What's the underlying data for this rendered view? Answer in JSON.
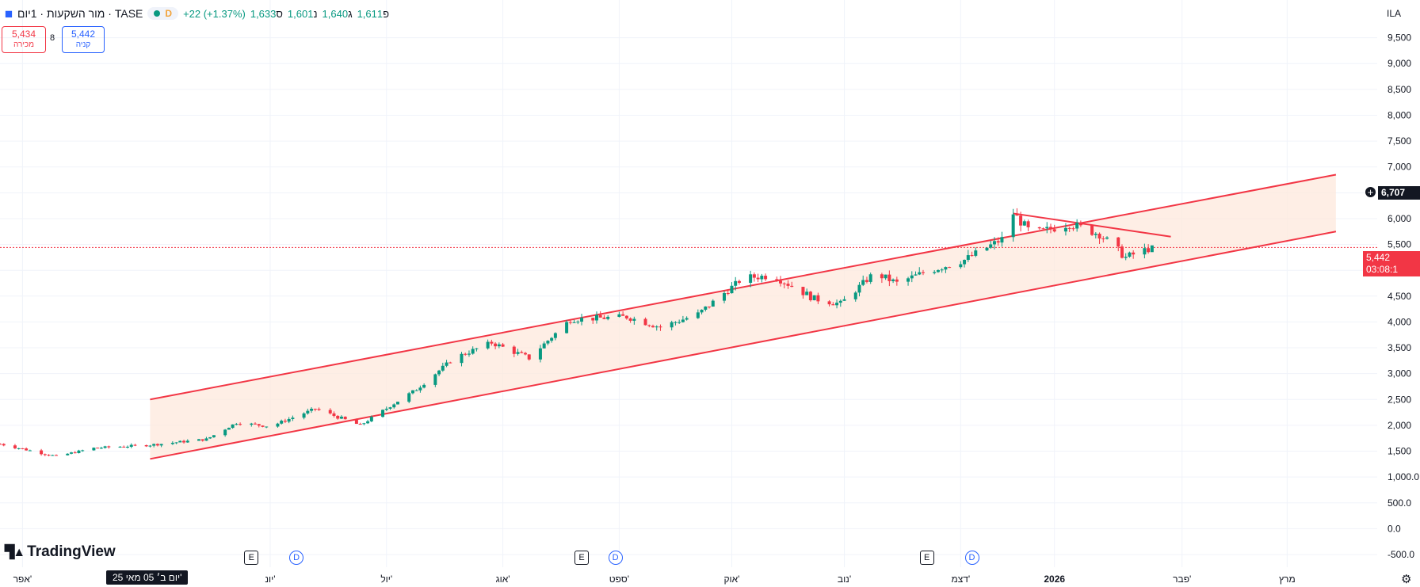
{
  "header": {
    "title": "מור השקעות · 1יום · TASE",
    "interval_badge": "D",
    "change": "+22 (+1.37%)",
    "ohlc": {
      "o_label": "פ",
      "o": "1,611",
      "h_label": "ג",
      "h": "1,640",
      "l_label": "נ",
      "l": "1,601",
      "c_label": "ס",
      "c": "1,633"
    }
  },
  "trade": {
    "sell_price": "5,434",
    "sell_label": "מכירה",
    "spread": "8",
    "buy_price": "5,442",
    "buy_label": "קניה"
  },
  "currency": "ILA",
  "crosshair_price": "6,707",
  "last_price": "5,442",
  "countdown": "03:08:1",
  "crosshair_date": "יום ב׳ 05 מאי 25'",
  "logo_text": "TradingView",
  "colors": {
    "up": "#089981",
    "down": "#f23645",
    "channel": "#f23645",
    "channel_fill": "#fde8dc"
  },
  "events": [
    {
      "type": "E",
      "date": "2025-06-01"
    },
    {
      "type": "D",
      "date": "2025-06-13"
    },
    {
      "type": "E",
      "date": "2025-08-28"
    },
    {
      "type": "D",
      "date": "2025-09-06"
    },
    {
      "type": "E",
      "date": "2025-11-28"
    },
    {
      "type": "D",
      "date": "2025-12-10"
    }
  ],
  "chart_data": {
    "type": "candlestick",
    "x_range": [
      "2025-03-26",
      "2026-03-28"
    ],
    "y_range": [
      -500,
      10000
    ],
    "y_ticks": [
      "9,500",
      "9,000",
      "8,500",
      "8,000",
      "7,500",
      "7,000",
      "6,500",
      "6,000",
      "5,500",
      "5,000",
      "4,500",
      "4,000",
      "3,500",
      "3,000",
      "2,500",
      "2,000",
      "1,500",
      "1,000.0",
      "500.0",
      "0.0",
      "-500.0"
    ],
    "y_tick_values": [
      9500,
      9000,
      8500,
      8000,
      7500,
      7000,
      6500,
      6000,
      5500,
      5000,
      4500,
      4000,
      3500,
      3000,
      2500,
      2000,
      1500,
      1000,
      500,
      0,
      -500
    ],
    "x_ticks": [
      {
        "label": "אפר'",
        "date": "2025-04-01"
      },
      {
        "label": "יונ'",
        "date": "2025-06-06"
      },
      {
        "label": "יול'",
        "date": "2025-07-07"
      },
      {
        "label": "אוג'",
        "date": "2025-08-07"
      },
      {
        "label": "ספט'",
        "date": "2025-09-07"
      },
      {
        "label": "אוק'",
        "date": "2025-10-07"
      },
      {
        "label": "נוב'",
        "date": "2025-11-06"
      },
      {
        "label": "דצמ'",
        "date": "2025-12-07"
      },
      {
        "label": "2026",
        "date": "2026-01-01"
      },
      {
        "label": "פבר'",
        "date": "2026-02-04"
      },
      {
        "label": "מרץ",
        "date": "2026-03-04"
      }
    ],
    "anchors": [
      {
        "date": "2025-03-26",
        "close": 1640
      },
      {
        "date": "2025-04-10",
        "close": 1400
      },
      {
        "date": "2025-04-20",
        "close": 1560
      },
      {
        "date": "2025-05-05",
        "close": 1620
      },
      {
        "date": "2025-05-20",
        "close": 1730
      },
      {
        "date": "2025-05-28",
        "close": 2050
      },
      {
        "date": "2025-06-06",
        "close": 1980
      },
      {
        "date": "2025-06-18",
        "close": 2320
      },
      {
        "date": "2025-06-30",
        "close": 2000
      },
      {
        "date": "2025-07-15",
        "close": 2700
      },
      {
        "date": "2025-07-25",
        "close": 3300
      },
      {
        "date": "2025-08-04",
        "close": 3600
      },
      {
        "date": "2025-08-14",
        "close": 3300
      },
      {
        "date": "2025-08-25",
        "close": 4050
      },
      {
        "date": "2025-09-09",
        "close": 4100
      },
      {
        "date": "2025-09-18",
        "close": 3900
      },
      {
        "date": "2025-09-28",
        "close": 4150
      },
      {
        "date": "2025-10-10",
        "close": 4850
      },
      {
        "date": "2025-10-18",
        "close": 4900
      },
      {
        "date": "2025-10-29",
        "close": 4450
      },
      {
        "date": "2025-11-05",
        "close": 4350
      },
      {
        "date": "2025-11-14",
        "close": 4950
      },
      {
        "date": "2025-11-20",
        "close": 4750
      },
      {
        "date": "2025-11-27",
        "close": 4950
      },
      {
        "date": "2025-12-08",
        "close": 5200
      },
      {
        "date": "2025-12-18",
        "close": 5600
      },
      {
        "date": "2025-12-21",
        "close": 6100
      },
      {
        "date": "2025-12-26",
        "close": 5700
      },
      {
        "date": "2026-01-05",
        "close": 5900
      },
      {
        "date": "2026-01-13",
        "close": 5700
      },
      {
        "date": "2026-01-20",
        "close": 5250
      },
      {
        "date": "2026-01-27",
        "close": 5442
      }
    ],
    "channel": {
      "upper": [
        {
          "date": "2025-05-05",
          "value": 2500
        },
        {
          "date": "2026-03-17",
          "value": 6850
        }
      ],
      "lower": [
        {
          "date": "2025-05-05",
          "value": 1350
        },
        {
          "date": "2026-03-17",
          "value": 5750
        }
      ]
    },
    "trendline": [
      {
        "date": "2025-12-21",
        "value": 6100
      },
      {
        "date": "2026-02-01",
        "value": 5650
      }
    ],
    "last_price_value": 5442,
    "crosshair_value": 6707
  }
}
